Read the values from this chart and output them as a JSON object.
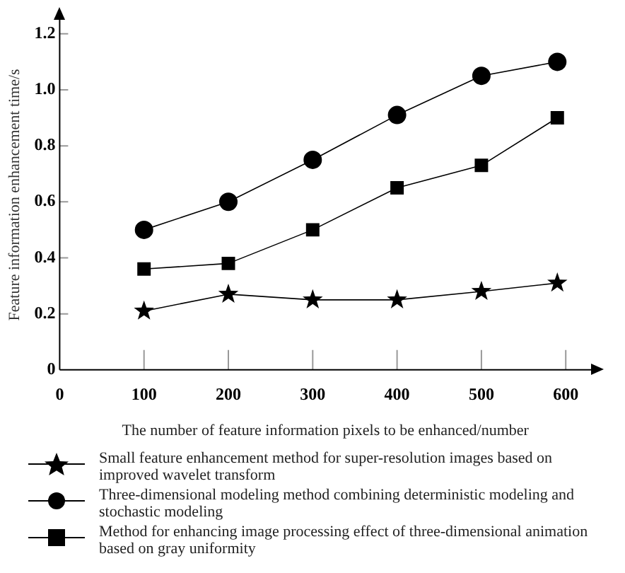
{
  "chart_data": {
    "type": "line",
    "xlabel": "The number of feature information pixels to be enhanced/number",
    "ylabel": "Feature information enhancement time/s",
    "x": [
      100,
      200,
      300,
      400,
      500,
      590
    ],
    "series": [
      {
        "name": "Small feature enhancement method for super-resolution images based on improved wavelet transform",
        "color": "#000000",
        "marker": "star",
        "values": [
          0.21,
          0.27,
          0.25,
          0.25,
          0.28,
          0.31
        ]
      },
      {
        "name": "Three-dimensional modeling method combining deterministic modeling and stochastic modeling",
        "color": "#000000",
        "marker": "circle",
        "values": [
          0.5,
          0.6,
          0.75,
          0.91,
          1.05,
          1.1
        ]
      },
      {
        "name": "Method for enhancing image processing effect of three-dimensional animation based on gray uniformity",
        "color": "#000000",
        "marker": "square",
        "values": [
          0.36,
          0.38,
          0.5,
          0.65,
          0.73,
          0.9
        ]
      }
    ],
    "xlim": [
      0,
      630
    ],
    "ylim": [
      0,
      1.25
    ],
    "xticks": [
      0,
      100,
      200,
      300,
      400,
      500,
      600
    ],
    "yticks": [
      0,
      0.2,
      0.4,
      0.6,
      0.8,
      {
        "value": 1,
        "label": "1.0"
      },
      1.2
    ],
    "legend": "bottom"
  }
}
